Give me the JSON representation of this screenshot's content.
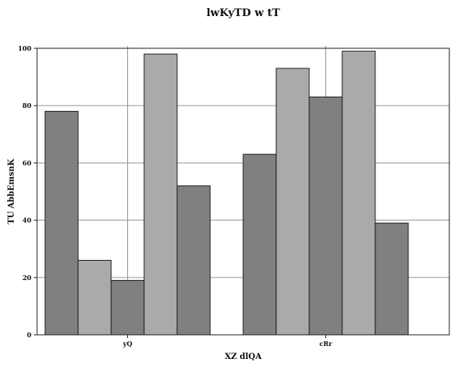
{
  "chart_data": {
    "type": "bar",
    "title": "lwKyTD w tT",
    "xlabel": "XZ dlQA",
    "ylabel": "TU AbbEmsnK",
    "categories": [
      "yQ",
      "cRr"
    ],
    "series": [
      {
        "name": "s1",
        "color": "#808080",
        "values": [
          78,
          63
        ]
      },
      {
        "name": "s2",
        "color": "#aaaaaa",
        "values": [
          26,
          93
        ]
      },
      {
        "name": "s3",
        "color": "#808080",
        "values": [
          19,
          83
        ]
      },
      {
        "name": "s4",
        "color": "#aaaaaa",
        "values": [
          98,
          99
        ]
      },
      {
        "name": "s5",
        "color": "#808080",
        "values": [
          52,
          39
        ]
      }
    ],
    "ylim": [
      0,
      100
    ],
    "yticks": [
      "0",
      "20",
      "40",
      "60",
      "80",
      "100"
    ],
    "grid": true
  }
}
